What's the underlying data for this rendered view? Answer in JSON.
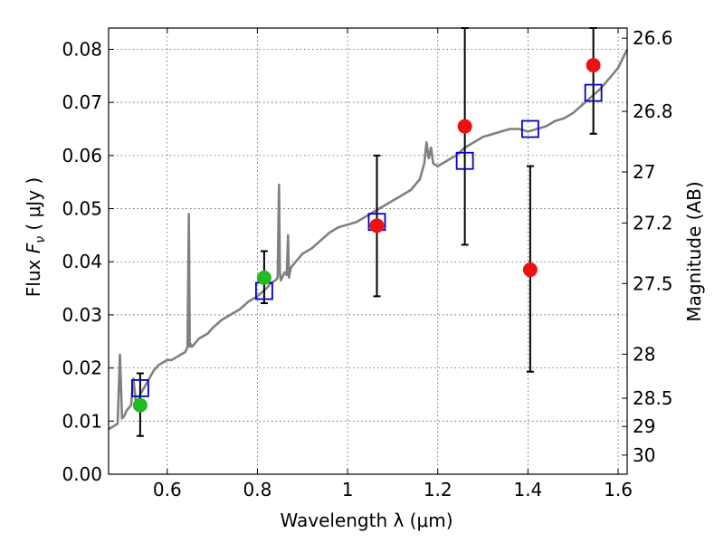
{
  "chart_data": {
    "type": "scatter",
    "xlabel": "Wavelength  λ (μm)",
    "ylabel_prefix": "Flux  ",
    "ylabel_symbol": "F",
    "ylabel_subscript": "ν",
    "ylabel_suffix": "  ( μJy )",
    "y2label": "Magnitude (AB)",
    "xlim": [
      0.47,
      1.62
    ],
    "ylim": [
      0.0,
      0.084
    ],
    "grid": true,
    "x_ticks": [
      0.6,
      0.8,
      1.0,
      1.2,
      1.4,
      1.6
    ],
    "x_tick_labels": [
      "0.6",
      "0.8",
      "1",
      "1.2",
      "1.4",
      "1.6"
    ],
    "y_ticks": [
      0.0,
      0.01,
      0.02,
      0.03,
      0.04,
      0.05,
      0.06,
      0.07,
      0.08
    ],
    "y_tick_labels": [
      "0.00",
      "0.01",
      "0.02",
      "0.03",
      "0.04",
      "0.05",
      "0.06",
      "0.07",
      "0.08"
    ],
    "y2_ticks": [
      {
        "label": "26.6",
        "flux": 0.0821
      },
      {
        "label": "26.8",
        "flux": 0.0683
      },
      {
        "label": "27",
        "flux": 0.0569
      },
      {
        "label": "27.2",
        "flux": 0.0473
      },
      {
        "label": "27.5",
        "flux": 0.0359
      },
      {
        "label": "28",
        "flux": 0.0226
      },
      {
        "label": "28.5",
        "flux": 0.0143
      },
      {
        "label": "29",
        "flux": 0.009
      },
      {
        "label": "30",
        "flux": 0.0036
      }
    ],
    "series": [
      {
        "name": "model-spectrum",
        "kind": "line",
        "color": "#808080",
        "x": [
          0.47,
          0.48,
          0.49,
          0.495,
          0.5,
          0.505,
          0.51,
          0.52,
          0.525,
          0.53,
          0.535,
          0.54,
          0.55,
          0.56,
          0.57,
          0.58,
          0.59,
          0.6,
          0.61,
          0.62,
          0.63,
          0.64,
          0.645,
          0.648,
          0.65,
          0.652,
          0.655,
          0.66,
          0.67,
          0.68,
          0.69,
          0.7,
          0.72,
          0.74,
          0.76,
          0.78,
          0.8,
          0.82,
          0.83,
          0.84,
          0.845,
          0.848,
          0.85,
          0.852,
          0.855,
          0.86,
          0.865,
          0.868,
          0.87,
          0.872,
          0.875,
          0.88,
          0.9,
          0.92,
          0.94,
          0.96,
          0.98,
          1.0,
          1.02,
          1.04,
          1.06,
          1.08,
          1.1,
          1.12,
          1.14,
          1.16,
          1.17,
          1.175,
          1.18,
          1.185,
          1.19,
          1.2,
          1.22,
          1.24,
          1.26,
          1.28,
          1.3,
          1.32,
          1.34,
          1.36,
          1.38,
          1.4,
          1.42,
          1.44,
          1.46,
          1.48,
          1.5,
          1.52,
          1.54,
          1.56,
          1.58,
          1.6,
          1.62
        ],
        "y": [
          0.0085,
          0.009,
          0.0095,
          0.0225,
          0.0105,
          0.011,
          0.012,
          0.013,
          0.018,
          0.014,
          0.0135,
          0.015,
          0.0165,
          0.018,
          0.0195,
          0.0205,
          0.021,
          0.0215,
          0.0215,
          0.022,
          0.0225,
          0.023,
          0.024,
          0.049,
          0.024,
          0.0245,
          0.024,
          0.0245,
          0.0255,
          0.026,
          0.0265,
          0.0275,
          0.029,
          0.03,
          0.031,
          0.0325,
          0.0335,
          0.035,
          0.036,
          0.0365,
          0.037,
          0.0545,
          0.038,
          0.0365,
          0.037,
          0.038,
          0.0375,
          0.045,
          0.037,
          0.038,
          0.039,
          0.0395,
          0.0415,
          0.0425,
          0.044,
          0.0455,
          0.0465,
          0.047,
          0.0475,
          0.0485,
          0.0495,
          0.0505,
          0.0515,
          0.0525,
          0.0535,
          0.0555,
          0.0585,
          0.0625,
          0.0595,
          0.0615,
          0.0585,
          0.058,
          0.059,
          0.06,
          0.0615,
          0.0625,
          0.0635,
          0.064,
          0.0645,
          0.065,
          0.065,
          0.0645,
          0.065,
          0.0655,
          0.0665,
          0.067,
          0.068,
          0.0695,
          0.071,
          0.0725,
          0.0745,
          0.0765,
          0.08
        ]
      },
      {
        "name": "model-points",
        "kind": "square",
        "color": "#0000cc",
        "x": [
          0.54,
          0.815,
          1.065,
          1.26,
          1.405,
          1.545
        ],
        "y": [
          0.0162,
          0.0345,
          0.0475,
          0.059,
          0.065,
          0.0718
        ]
      },
      {
        "name": "observed-detections",
        "kind": "circle",
        "color": "#22bb22",
        "x": [
          0.54,
          0.815
        ],
        "y": [
          0.013,
          0.037
        ]
      },
      {
        "name": "observed-other",
        "kind": "circle",
        "color": "#ee1111",
        "x": [
          1.065,
          1.26,
          1.405,
          1.545
        ],
        "y": [
          0.0468,
          0.0655,
          0.0385,
          0.077
        ]
      }
    ],
    "error_bars": [
      {
        "x": 0.54,
        "low": 0.0072,
        "high": 0.019
      },
      {
        "x": 0.815,
        "low": 0.0322,
        "high": 0.042
      },
      {
        "x": 1.065,
        "low": 0.0335,
        "high": 0.06
      },
      {
        "x": 1.26,
        "low": 0.0432,
        "high": 0.084
      },
      {
        "x": 1.405,
        "low": 0.0193,
        "high": 0.058
      },
      {
        "x": 1.545,
        "low": 0.0641,
        "high": 0.084
      }
    ]
  }
}
